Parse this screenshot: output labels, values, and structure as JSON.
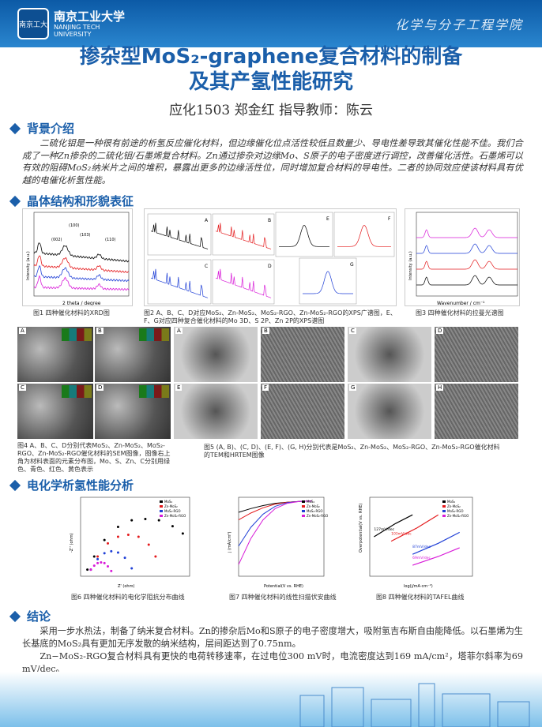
{
  "header": {
    "logo_text": "南京工大",
    "university_cn": "南京工业大学",
    "university_en_1": "NANJING TECH",
    "university_en_2": "UNIVERSITY",
    "school": "化学与分子工程学院"
  },
  "title_line1": "掺杂型MoS₂-graphene复合材料的制备",
  "title_line2": "及其产氢性能研究",
  "authors": "应化1503 郑金红 指导教师：陈云",
  "sections": {
    "background": {
      "heading": "背景介绍",
      "text": "二硫化钼是一种很有前途的析氢反应催化材料，但边缘催化位点活性较低且数量少、导电性差导致其催化性能不佳。我们合成了一种Zn掺杂的二硫化钼/石墨烯复合材料。Zn通过掺杂对边缘Mo、S原子的电子密度进行调控，改善催化活性。石墨烯可以有效的阻碍MoS₂纳米片之间的堆积，暴露出更多的边缘活性位，同时增加复合材料的导电性。二者的协同效应使该材料具有优越的电催化析氢性能。"
    },
    "structure": {
      "heading": "晶体结构和形貌表征",
      "fig1_caption": "图1 四种催化材料的XRD图",
      "fig2_caption": "图2 A、B、C、D对应MoS₂、Zn-MoS₂、MoS₂-RGO、Zn-MoS₂-RGO的XPS广谱图，E、F、G对应四种复合催化材料的Mo 3D、S 2P、Zn 2P的XPS谱图",
      "fig3_caption": "图3 四种催化材料的拉曼光谱图",
      "fig4_caption": "图4 A、B、C、D分别代表MoS₂、Zn-MoS₂、MoS₂-RGO、Zn-MoS₂-RGO催化材料的SEM图像，图像右上角为材料表面的元素分布图，Mo、S、Zn、C分别用绿色、青色、红色、黄色表示",
      "fig5_caption": "图5 (A, B)、(C, D)、(E, F)、(G, H)分别代表是MoS₂、Zn-MoS₂、MoS₂-RGO、Zn-MoS₂-RGO催化材料的TEM和HRTEM图像",
      "xrd_peaks": [
        "(002)",
        "(100)",
        "(103)",
        "(110)"
      ],
      "xrd_xlabel": "2 theta / degree",
      "xrd_ylabel": "Intensity (a.u.)",
      "xps_panels": [
        "A",
        "B",
        "C",
        "D",
        "E",
        "F",
        "G"
      ],
      "raman_xlabel": "Wavenumber / cm⁻¹",
      "raman_ylabel": "Intensity (a.u.)",
      "sem_panels": [
        "A",
        "B",
        "C",
        "D"
      ],
      "tem_panels": [
        "A",
        "B",
        "C",
        "D",
        "E",
        "F",
        "G",
        "H"
      ]
    },
    "electro": {
      "heading": "电化学析氢性能分析",
      "fig6_caption": "图6 四种催化材料的电化学阻抗分布曲线",
      "fig7_caption": "图7 四种催化材料的线性扫描伏安曲线",
      "fig8_caption": "图8 四种催化材料的TAFEL曲线",
      "fig6_xlabel": "Z' (ohm)",
      "fig6_ylabel": "-Z'' (ohm)",
      "fig7_xlabel": "Potential(V vs. RHE)",
      "fig7_ylabel": "j (mA/cm²)",
      "fig8_xlabel": "log(j/mA·cm⁻²)",
      "fig8_ylabel": "Overpotential(V vs. RHE)"
    },
    "conclusion": {
      "heading": "结论",
      "text1": "采用一步水热法，制备了纳米复合材料。Zn的掺杂后Mo和S原子的电子密度增大，吸附氢吉布斯自由能降低。以石墨烯为生长基底的MoS₂具有更加无序发散的纳米结构，层间距达到了0.75nm。",
      "text2": "Zn−MoS₂-RGO复合材料具有更快的电荷转移速率，在过电位300 mV时，电流密度达到169 mA/cm²，塔菲尔斜率为69 mV/dec。"
    }
  },
  "legend": [
    "MoS₂",
    "Zn-MoS₂",
    "MoS₂-RGO",
    "Zn-MoS₂-RGO"
  ],
  "colors": {
    "MoS2": "#000000",
    "Zn-MoS2": "#e41a1c",
    "MoS2-RGO": "#1f3fd6",
    "Zn-MoS2-RGO": "#d81bd8",
    "accent": "#1b5faa"
  },
  "chart_data": [
    {
      "type": "line",
      "title": "",
      "xlabel": "2 theta / degree",
      "ylabel": "Intensity (a.u.)",
      "xlim": [
        10,
        80
      ],
      "series": [
        {
          "name": "MoS₂",
          "x": [
            10,
            14,
            20,
            33,
            40,
            58,
            70,
            80
          ],
          "y": [
            1.0,
            1.5,
            1.1,
            1.6,
            1.2,
            1.1,
            0.9,
            0.8
          ]
        },
        {
          "name": "Zn-MoS₂",
          "x": [
            10,
            14,
            20,
            33,
            40,
            58,
            70,
            80
          ],
          "y": [
            0.7,
            1.1,
            0.8,
            1.25,
            0.9,
            0.8,
            0.65,
            0.55
          ]
        },
        {
          "name": "MoS₂-RGO",
          "x": [
            10,
            14,
            20,
            33,
            40,
            58,
            70,
            80
          ],
          "y": [
            0.45,
            0.75,
            0.55,
            0.9,
            0.6,
            0.5,
            0.4,
            0.35
          ]
        },
        {
          "name": "Zn-MoS₂-RGO",
          "x": [
            10,
            14,
            20,
            33,
            40,
            58,
            70,
            80
          ],
          "y": [
            0.2,
            0.45,
            0.3,
            0.6,
            0.35,
            0.28,
            0.2,
            0.15
          ]
        }
      ]
    },
    {
      "type": "scatter",
      "title": "",
      "xlabel": "Z' (ohm)",
      "ylabel": "-Z'' (ohm)",
      "xlim": [
        0,
        1600
      ],
      "ylim": [
        0,
        1200
      ],
      "series": [
        {
          "name": "MoS₂",
          "x": [
            100,
            200,
            350,
            550,
            750,
            950,
            1150,
            1350,
            1500
          ],
          "y": [
            100,
            300,
            550,
            750,
            850,
            870,
            850,
            760,
            650
          ]
        },
        {
          "name": "Zn-MoS₂",
          "x": [
            150,
            250,
            400,
            550,
            700,
            850,
            1000,
            1100
          ],
          "y": [
            100,
            300,
            500,
            600,
            630,
            600,
            480,
            300
          ]
        },
        {
          "name": "MoS₂-RGO",
          "x": [
            150,
            250,
            350,
            450,
            550,
            650,
            750
          ],
          "y": [
            100,
            260,
            350,
            380,
            360,
            280,
            120
          ]
        },
        {
          "name": "Zn-MoS₂-RGO",
          "x": [
            150,
            200,
            250,
            300,
            350,
            400,
            450
          ],
          "y": [
            100,
            160,
            200,
            210,
            200,
            150,
            80
          ]
        }
      ]
    },
    {
      "type": "line",
      "title": "",
      "xlabel": "Potential(V vs. RHE)",
      "ylabel": "j (mA/cm²)",
      "xlim": [
        -0.3,
        0.05
      ],
      "ylim": [
        -200,
        10
      ],
      "series": [
        {
          "name": "MoS₂",
          "x": [
            -0.3,
            -0.25,
            -0.2,
            -0.15,
            -0.1,
            -0.05,
            0
          ],
          "y": [
            -30,
            -20,
            -12,
            -6,
            -3,
            -1,
            0
          ]
        },
        {
          "name": "Zn-MoS₂",
          "x": [
            -0.3,
            -0.25,
            -0.2,
            -0.15,
            -0.1,
            -0.05,
            0
          ],
          "y": [
            -50,
            -32,
            -18,
            -8,
            -3,
            -1,
            0
          ]
        },
        {
          "name": "MoS₂-RGO",
          "x": [
            -0.3,
            -0.25,
            -0.2,
            -0.15,
            -0.1,
            -0.05,
            0
          ],
          "y": [
            -120,
            -70,
            -35,
            -14,
            -4,
            -1,
            0
          ]
        },
        {
          "name": "Zn-MoS₂-RGO",
          "x": [
            -0.3,
            -0.25,
            -0.2,
            -0.15,
            -0.1,
            -0.05,
            0
          ],
          "y": [
            -169,
            -100,
            -50,
            -20,
            -6,
            -1,
            0
          ]
        }
      ]
    },
    {
      "type": "line",
      "title": "",
      "xlabel": "log(j/mA·cm⁻²)",
      "ylabel": "Overpotential(V vs. RHE)",
      "xlim": [
        0.4,
        1.6
      ],
      "ylim": [
        0.14,
        0.32
      ],
      "series": [
        {
          "name": "MoS₂",
          "label": "127mV/dec",
          "x": [
            0.45,
            0.7,
            0.9
          ],
          "y": [
            0.23,
            0.26,
            0.28
          ]
        },
        {
          "name": "Zn-MoS₂",
          "label": "103mV/dec",
          "x": [
            0.65,
            0.95,
            1.2
          ],
          "y": [
            0.22,
            0.25,
            0.28
          ]
        },
        {
          "name": "MoS₂-RGO",
          "label": "87mV/dec",
          "x": [
            0.9,
            1.2,
            1.45
          ],
          "y": [
            0.19,
            0.215,
            0.24
          ]
        },
        {
          "name": "Zn-MoS₂-RGO",
          "label": "69mV/dec",
          "x": [
            0.9,
            1.2,
            1.45
          ],
          "y": [
            0.165,
            0.185,
            0.205
          ]
        }
      ]
    }
  ]
}
